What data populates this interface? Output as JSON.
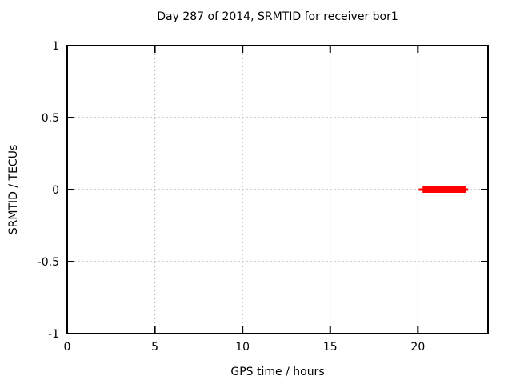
{
  "figure": {
    "background_color": "#ffffff",
    "border_color": "#000000",
    "grid_color": "#a6a6a6",
    "text_color": "#000000"
  },
  "chart_data": {
    "type": "line",
    "title": "Day 287 of 2014, SRMTID for receiver bor1",
    "xlabel": "GPS time / hours",
    "ylabel": "SRMTID / TECUs",
    "xlim": [
      0,
      24
    ],
    "ylim": [
      -1,
      1
    ],
    "xticks": [
      0,
      5,
      10,
      15,
      20
    ],
    "xtick_labels": [
      "0",
      "5",
      "10",
      "15",
      "20"
    ],
    "yticks": [
      -1,
      -0.5,
      0,
      0.5,
      1
    ],
    "ytick_labels": [
      "-1",
      "-0.5",
      "0",
      "0.5",
      "1"
    ],
    "grid": true,
    "grid_style": "dashed",
    "legend": "none",
    "series": [
      {
        "name": "SRMTID",
        "color": "#ff0000",
        "shape": "horizontal-segment",
        "y_value": 0,
        "x_start": 20.05,
        "x_end": 22.87,
        "core_x_start": 20.27,
        "core_x_end": 22.72
      }
    ]
  }
}
